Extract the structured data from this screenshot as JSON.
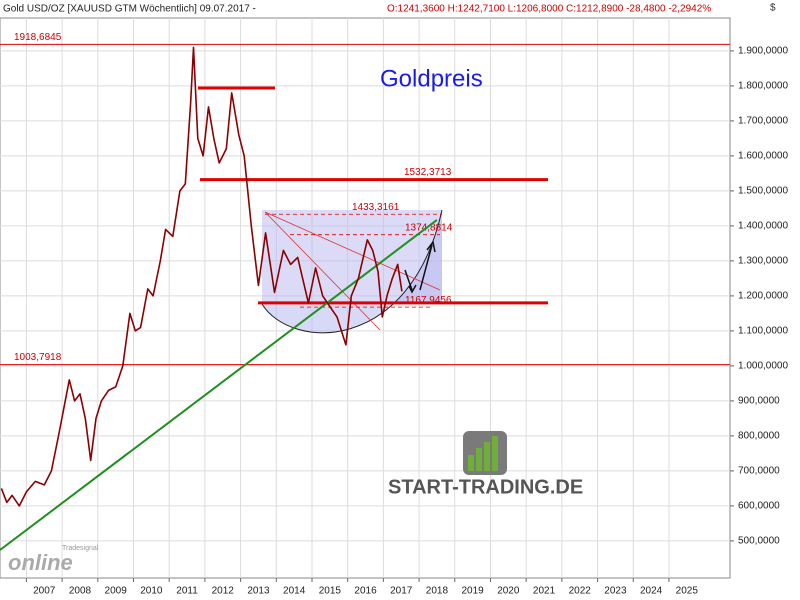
{
  "chart_data": {
    "type": "line",
    "header": "Gold USD/OZ [XAUUSD GTM  Wöchentlich] 09.07.2017 -",
    "header_values": "O:1241,3600 H:1242,7100 L:1206,8000 C:1212,8900 -28,4800 -2,2942%",
    "title": "Goldpreis",
    "currency": "$",
    "watermark": "START-TRADING.DE",
    "logo_small": "Tradesignal",
    "logo": "online",
    "color": "#8b0000",
    "x": [
      2006.3,
      2006.45,
      2006.6,
      2006.8,
      2007.0,
      2007.25,
      2007.5,
      2007.7,
      2007.9,
      2008.05,
      2008.2,
      2008.35,
      2008.5,
      2008.65,
      2008.8,
      2008.95,
      2009.1,
      2009.3,
      2009.5,
      2009.7,
      2009.9,
      2010.05,
      2010.2,
      2010.4,
      2010.55,
      2010.75,
      2010.9,
      2011.1,
      2011.3,
      2011.45,
      2011.6,
      2011.68,
      2011.8,
      2011.95,
      2012.1,
      2012.25,
      2012.4,
      2012.6,
      2012.75,
      2012.95,
      2013.1,
      2013.3,
      2013.5,
      2013.7,
      2013.95,
      2014.2,
      2014.4,
      2014.6,
      2014.9,
      2015.1,
      2015.3,
      2015.5,
      2015.7,
      2015.95,
      2016.1,
      2016.3,
      2016.55,
      2016.7,
      2016.85,
      2016.97,
      2017.1,
      2017.25,
      2017.4,
      2017.52
    ],
    "values": [
      650,
      610,
      630,
      600,
      640,
      670,
      660,
      700,
      800,
      880,
      960,
      900,
      920,
      850,
      730,
      850,
      900,
      930,
      940,
      1000,
      1150,
      1100,
      1110,
      1220,
      1200,
      1300,
      1390,
      1370,
      1500,
      1520,
      1750,
      1910,
      1650,
      1600,
      1740,
      1650,
      1580,
      1620,
      1780,
      1660,
      1600,
      1400,
      1230,
      1380,
      1210,
      1330,
      1290,
      1310,
      1180,
      1280,
      1200,
      1170,
      1140,
      1060,
      1200,
      1250,
      1360,
      1330,
      1270,
      1140,
      1200,
      1250,
      1290,
      1213
    ],
    "xlim": [
      2006.26,
      2026.71
    ],
    "ylim": [
      394,
      1994
    ],
    "xticks": [
      2007,
      2008,
      2009,
      2010,
      2011,
      2012,
      2013,
      2014,
      2015,
      2016,
      2017,
      2018,
      2019,
      2020,
      2021,
      2022,
      2023,
      2024,
      2025
    ],
    "yticks": [
      {
        "value": 500,
        "label": "500,0000"
      },
      {
        "value": 600,
        "label": "600,0000"
      },
      {
        "value": 700,
        "label": "700,0000"
      },
      {
        "value": 800,
        "label": "800,0000"
      },
      {
        "value": 900,
        "label": "900,0000"
      },
      {
        "value": 1000,
        "label": "1.000,0000"
      },
      {
        "value": 1100,
        "label": "1.100,0000"
      },
      {
        "value": 1200,
        "label": "1.200,0000"
      },
      {
        "value": 1300,
        "label": "1.300,0000"
      },
      {
        "value": 1400,
        "label": "1.400,0000"
      },
      {
        "value": 1500,
        "label": "1.500,0000"
      },
      {
        "value": 1600,
        "label": "1.600,0000"
      },
      {
        "value": 1700,
        "label": "1.700,0000"
      },
      {
        "value": 1800,
        "label": "1.800,0000"
      },
      {
        "value": 1900,
        "label": "1.900,0000"
      }
    ],
    "grid": true,
    "levels": [
      {
        "value": 1918.6845,
        "label": "1918,6845"
      },
      {
        "value": 1003.7918,
        "label": "1003,7918"
      },
      {
        "value": 1532.3713,
        "label": "1532,3713"
      },
      {
        "value": 1433.3161,
        "label": "1433,3161"
      },
      {
        "value": 1374.8814,
        "label": "1374,8814"
      },
      {
        "value": 1167.9456,
        "label": "1167,9456"
      }
    ],
    "marked_lines": [
      1794,
      1180
    ],
    "trendline": {
      "x": [
        2006.26,
        2018.5
      ],
      "values": [
        474,
        1417
      ],
      "color": "#1f8f1f"
    }
  }
}
